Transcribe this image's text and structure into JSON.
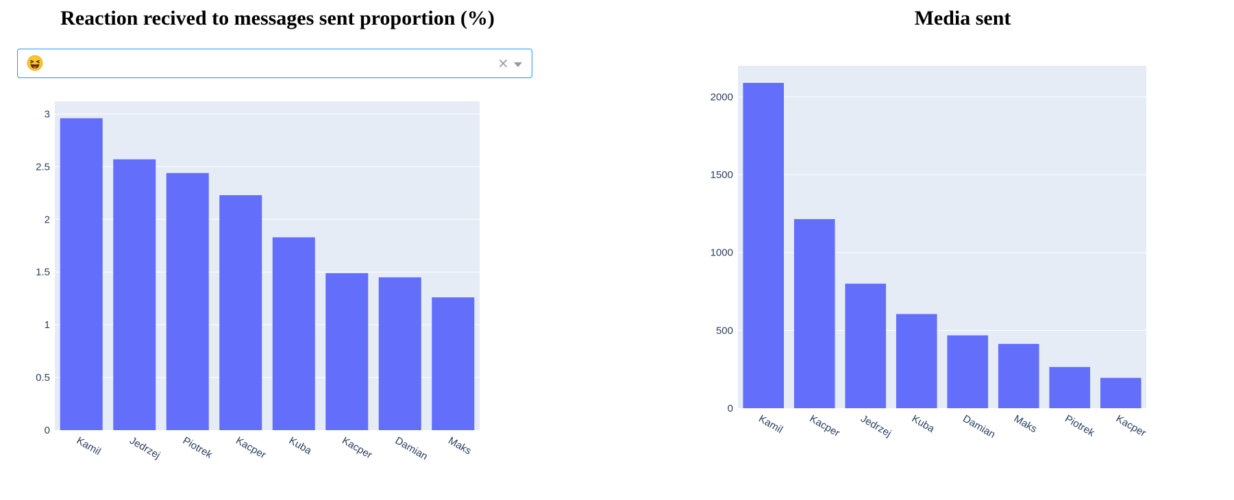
{
  "left": {
    "title": "Reaction recived to messages sent proportion (%)",
    "dropdown": {
      "selected_icon": "grinning-squinting-face-with-tongue-emoji",
      "clear_label": "×"
    }
  },
  "right": {
    "title": "Media sent"
  },
  "colors": {
    "bar": "#636efa",
    "plot_bg": "#e5ecf6",
    "grid": "#ffffff",
    "tick_text": "#2a3f5f",
    "dropdown_border": "#2196f3"
  },
  "chart_data": [
    {
      "type": "bar",
      "title": "Reaction recived to messages sent proportion (%)",
      "categories": [
        "Kamil",
        "Jedrzej",
        "Piotrek",
        "Kacper",
        "Kuba",
        "Kacper",
        "Damian",
        "Maks"
      ],
      "values": [
        2.96,
        2.57,
        2.44,
        2.23,
        1.83,
        1.49,
        1.45,
        1.26
      ],
      "yticks": [
        "0",
        "0.5",
        "1",
        "1.5",
        "2",
        "2.5",
        "3"
      ],
      "ylim": [
        0,
        3.12
      ],
      "grid": true
    },
    {
      "type": "bar",
      "title": "Media sent",
      "categories": [
        "Kamil",
        "Kacper",
        "Jedrzej",
        "Kuba",
        "Damian",
        "Maks",
        "Piotrek",
        "Kacper"
      ],
      "values": [
        2090,
        1215,
        800,
        605,
        468,
        413,
        265,
        195
      ],
      "yticks": [
        "0",
        "500",
        "1000",
        "1500",
        "2000"
      ],
      "ylim": [
        0,
        2200
      ],
      "grid": true
    }
  ]
}
